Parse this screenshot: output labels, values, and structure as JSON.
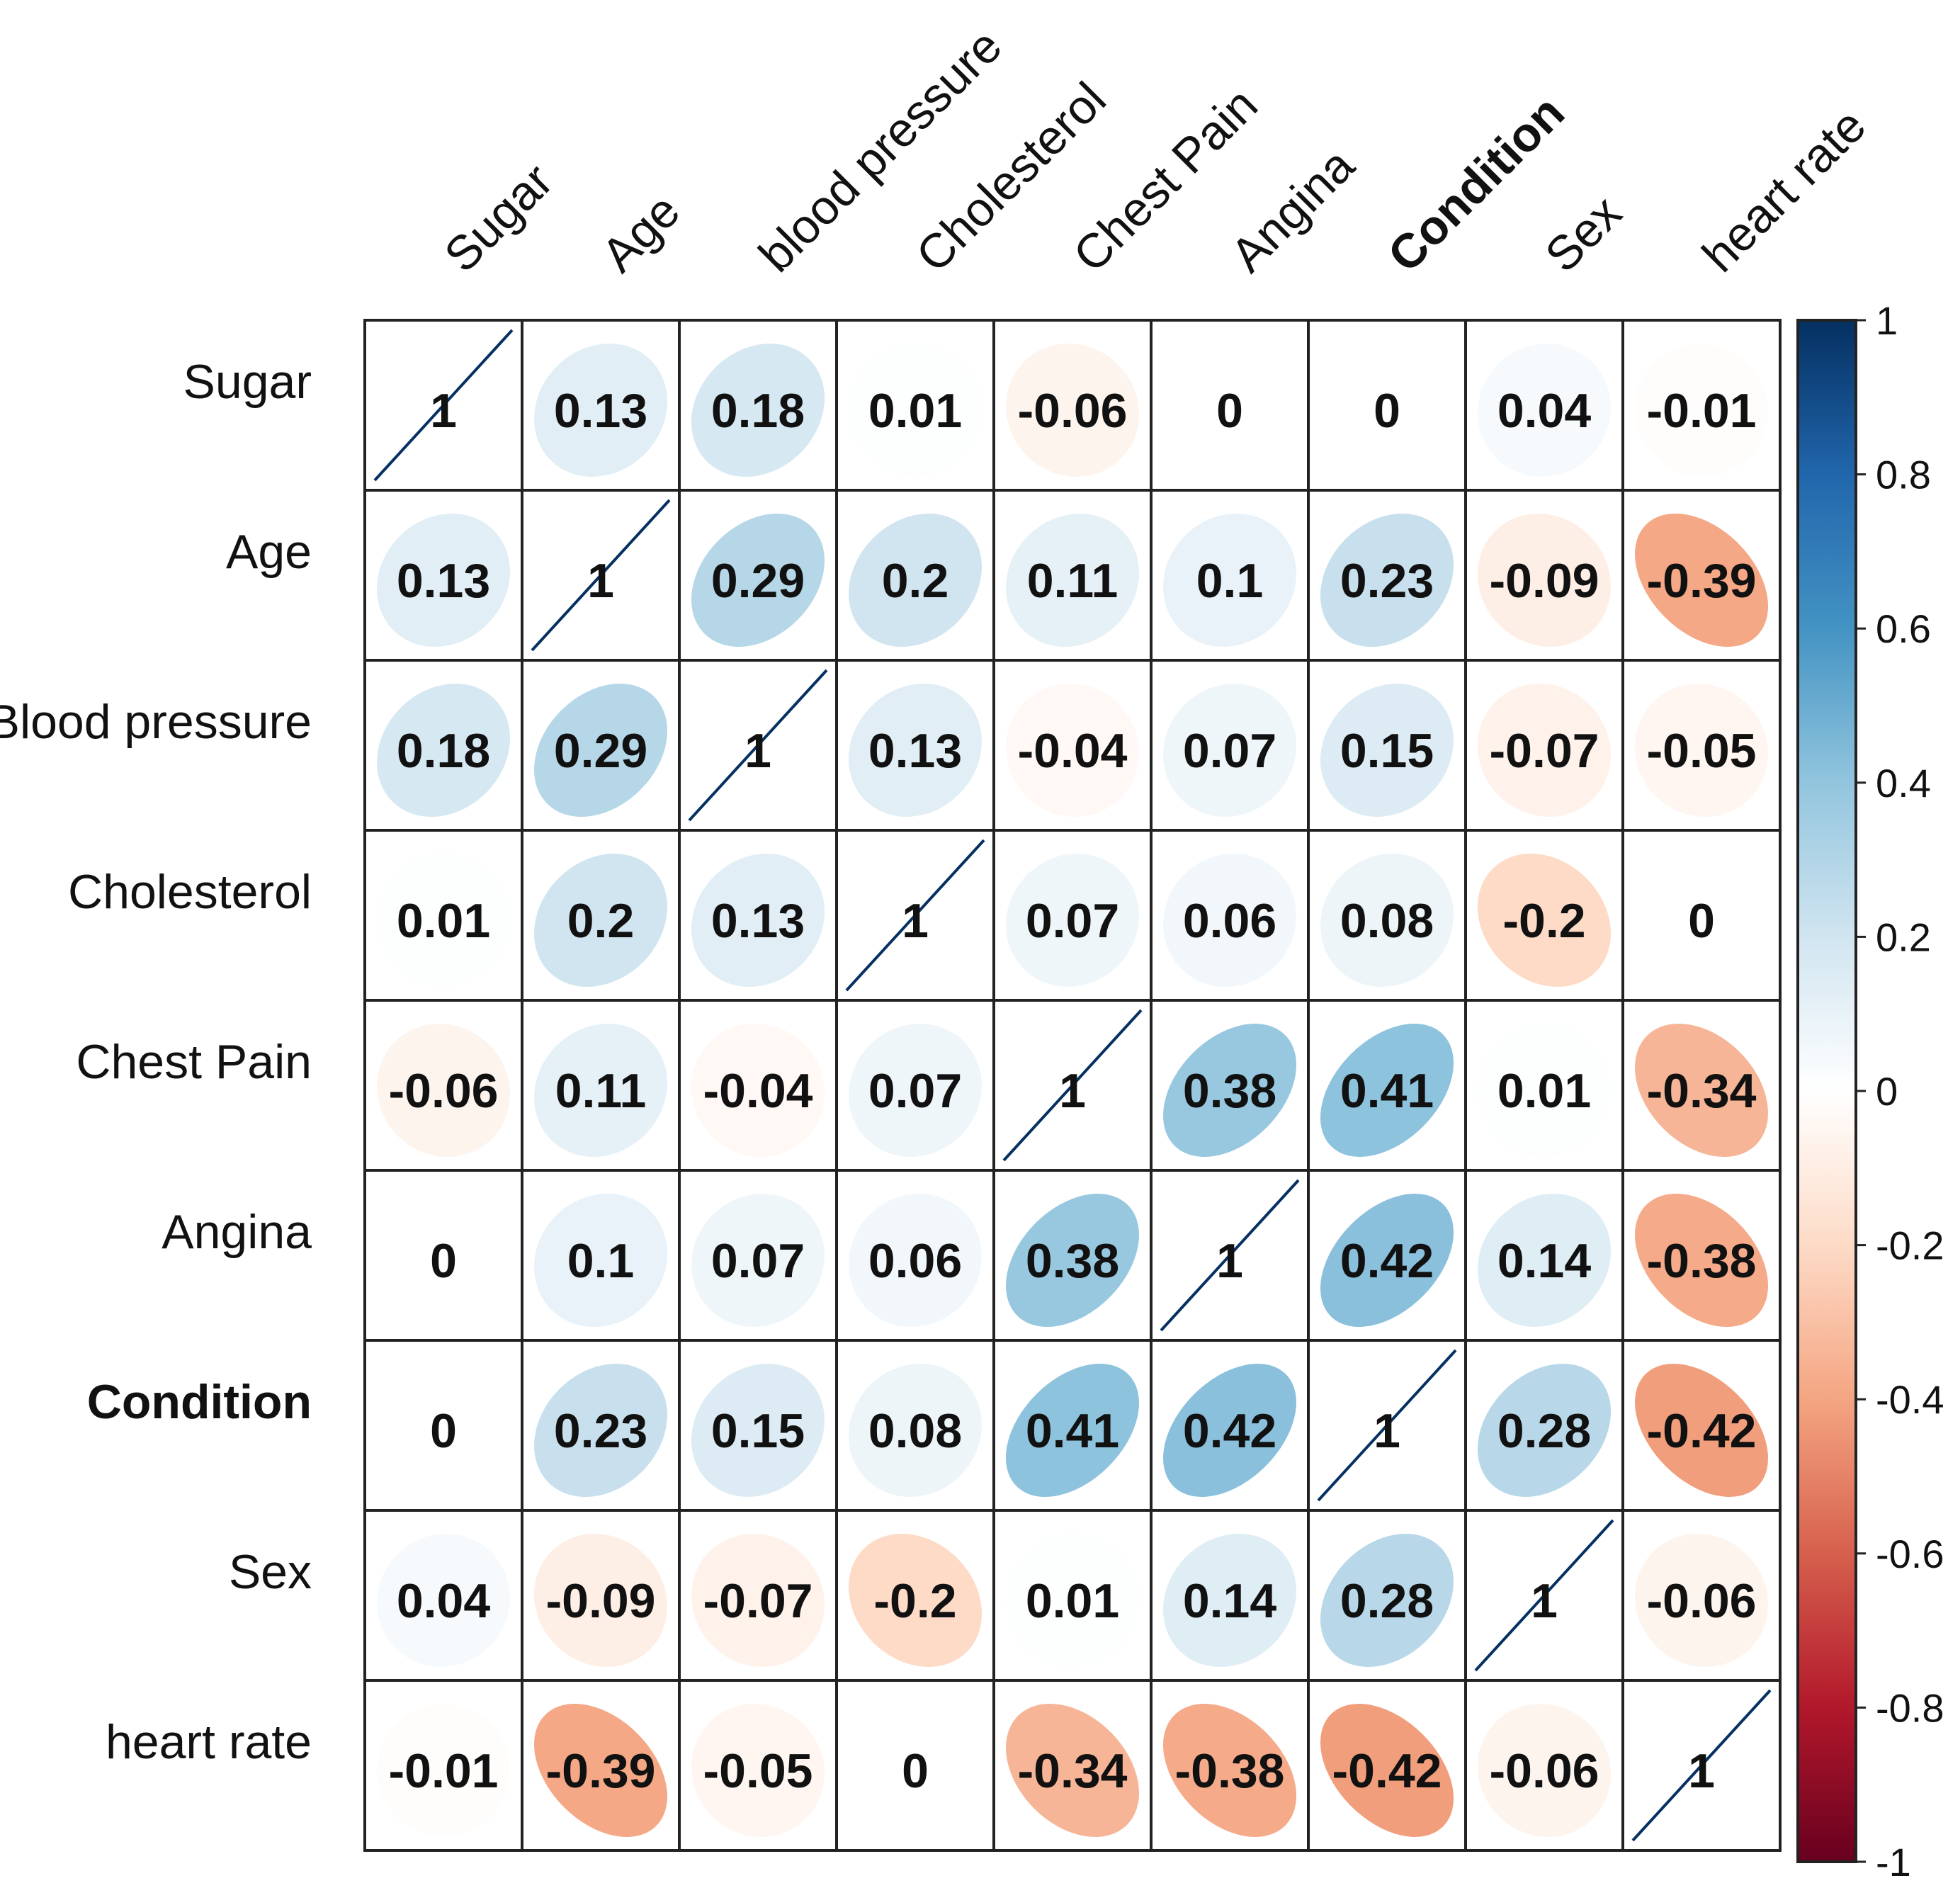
{
  "chart_data": {
    "type": "heatmap",
    "subtype": "correlation-matrix-ellipse",
    "title": "",
    "row_labels": [
      "Sugar",
      "Age",
      "Blood pressure",
      "Cholesterol",
      "Chest Pain",
      "Angina",
      "Condition",
      "Sex",
      "heart rate"
    ],
    "col_labels": [
      "Sugar",
      "Age",
      "blood pressure",
      "Cholesterol",
      "Chest Pain",
      "Angina",
      "Condition",
      "Sex",
      "heart rate"
    ],
    "bold_label": "Condition",
    "values": [
      [
        1,
        0.13,
        0.18,
        0.01,
        -0.06,
        0,
        0,
        0.04,
        -0.01
      ],
      [
        0.13,
        1,
        0.29,
        0.2,
        0.11,
        0.1,
        0.23,
        -0.09,
        -0.39
      ],
      [
        0.18,
        0.29,
        1,
        0.13,
        -0.04,
        0.07,
        0.15,
        -0.07,
        -0.05
      ],
      [
        0.01,
        0.2,
        0.13,
        1,
        0.07,
        0.06,
        0.08,
        -0.2,
        0
      ],
      [
        -0.06,
        0.11,
        -0.04,
        0.07,
        1,
        0.38,
        0.41,
        0.01,
        -0.34
      ],
      [
        0,
        0.1,
        0.07,
        0.06,
        0.38,
        1,
        0.42,
        0.14,
        -0.38
      ],
      [
        0,
        0.23,
        0.15,
        0.08,
        0.41,
        0.42,
        1,
        0.28,
        -0.42
      ],
      [
        0.04,
        -0.09,
        -0.07,
        -0.2,
        0.01,
        0.14,
        0.28,
        1,
        -0.06
      ],
      [
        -0.01,
        -0.39,
        -0.05,
        0,
        -0.34,
        -0.38,
        -0.42,
        -0.06,
        1
      ]
    ],
    "colorbar": {
      "range": [
        -1,
        1
      ],
      "ticks": [
        1,
        0.8,
        0.6,
        0.4,
        0.2,
        0,
        -0.2,
        -0.4,
        -0.6,
        -0.8,
        -1
      ],
      "tick_labels": [
        "1",
        "0.8",
        "0.6",
        "0.4",
        "0.2",
        "0",
        "-0.2",
        "-0.4",
        "-0.6",
        "-0.8",
        "-1"
      ],
      "placement": "right"
    },
    "palette": {
      "-1": "#67001f",
      "-0.8": "#b2182b",
      "-0.6": "#d6604d",
      "-0.4": "#f4a582",
      "-0.2": "#fddbc7",
      "0": "#ffffff",
      "0.2": "#d1e5f0",
      "0.4": "#92c5de",
      "0.6": "#4393c3",
      "0.8": "#2166ac",
      "1": "#053061"
    }
  }
}
